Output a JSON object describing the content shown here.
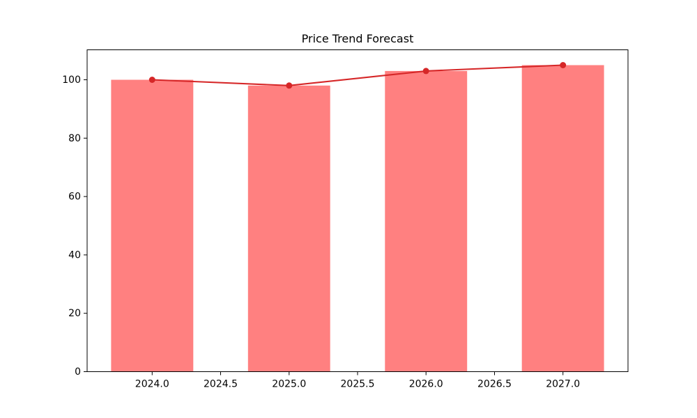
{
  "figure": {
    "background": "#ffffff"
  },
  "chart_data": {
    "type": "bar",
    "title": "Price Trend Forecast",
    "xlabel": "",
    "ylabel": "",
    "x": [
      2024,
      2025,
      2026,
      2027
    ],
    "series": [
      {
        "name": "price-bars",
        "type": "bar",
        "values": [
          100,
          98,
          103,
          105
        ],
        "color": "#ff8080",
        "bar_width": 0.6
      },
      {
        "name": "price-trend",
        "type": "line",
        "values": [
          100,
          98,
          103,
          105
        ],
        "color": "#d62728",
        "marker": "circle"
      }
    ],
    "xlim": [
      2023.525,
      2027.475
    ],
    "ylim": [
      0,
      110.25
    ],
    "xticks": {
      "values": [
        2024.0,
        2024.5,
        2025.0,
        2025.5,
        2026.0,
        2026.5,
        2027.0
      ],
      "labels": [
        "2024.0",
        "2024.5",
        "2025.0",
        "2025.5",
        "2026.0",
        "2026.5",
        "2027.0"
      ]
    },
    "yticks": {
      "values": [
        0,
        20,
        40,
        60,
        80,
        100
      ],
      "labels": [
        "0",
        "20",
        "40",
        "60",
        "80",
        "100"
      ]
    },
    "grid": false,
    "legend": null,
    "axis_color": "#000000",
    "text_color": "#000000"
  }
}
